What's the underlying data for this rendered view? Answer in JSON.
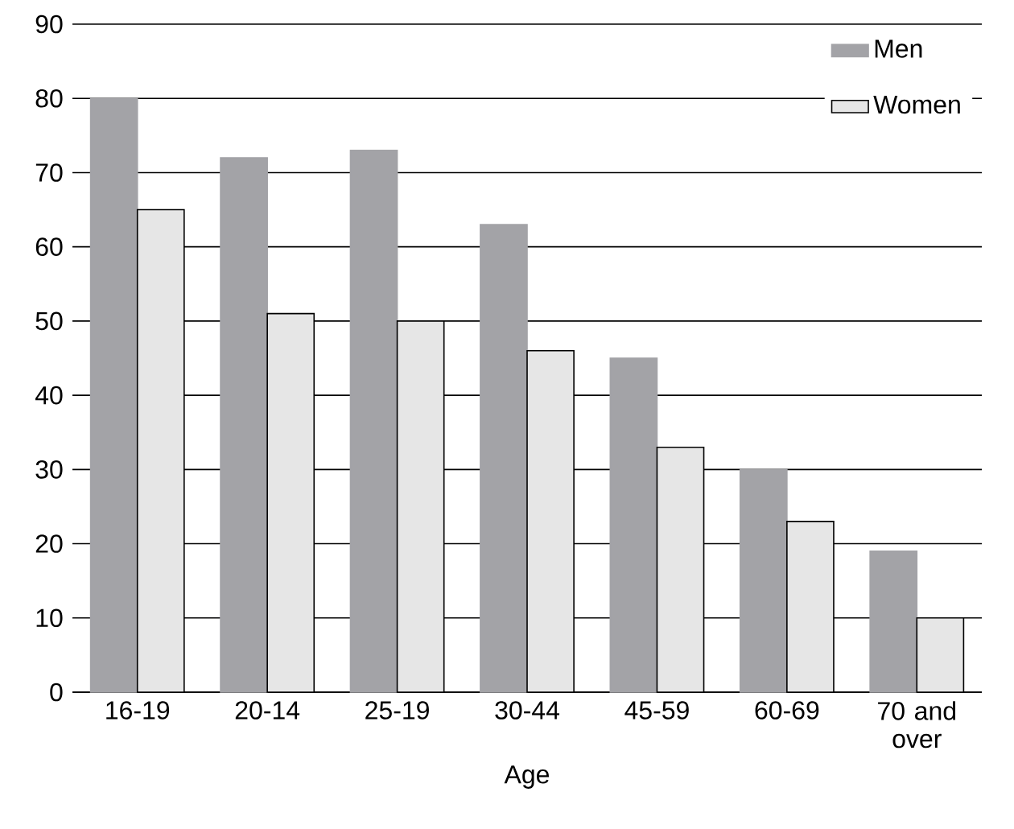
{
  "chart_data": {
    "type": "bar",
    "xlabel": "Age",
    "categories": [
      "16-19",
      "20-14",
      "25-19",
      "30-44",
      "45-59",
      "60-69",
      "70 and over"
    ],
    "series": [
      {
        "name": "Men",
        "color": "#a3a3a7",
        "values": [
          80,
          72,
          73,
          63,
          45,
          30,
          19
        ]
      },
      {
        "name": "Women",
        "color": "#e6e6e6",
        "values": [
          65,
          51,
          50,
          46,
          33,
          23,
          10
        ]
      }
    ],
    "ylim": [
      0,
      90
    ],
    "yticks": [
      0,
      10,
      20,
      30,
      40,
      50,
      60,
      70,
      80,
      90
    ],
    "grid": "y",
    "legend": "top right"
  }
}
